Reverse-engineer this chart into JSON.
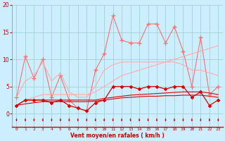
{
  "bg_color": "#cceeff",
  "grid_color": "#99cccc",
  "x_labels": [
    "0",
    "1",
    "2",
    "3",
    "4",
    "5",
    "6",
    "7",
    "8",
    "9",
    "10",
    "11",
    "12",
    "13",
    "14",
    "15",
    "16",
    "17",
    "18",
    "19",
    "20",
    "21",
    "22",
    "23"
  ],
  "xlabel": "Vent moyen/en rafales ( km/h )",
  "ylim": [
    -2.5,
    20
  ],
  "yticks": [
    0,
    5,
    10,
    15,
    20
  ],
  "ytick_labels": [
    "0",
    "5",
    "10",
    "15",
    "20"
  ],
  "series": [
    {
      "name": "gust_peak",
      "color": "#ff7070",
      "lw": 0.8,
      "marker": "+",
      "ms": 4,
      "data": [
        3,
        10.5,
        6.5,
        10,
        3,
        7,
        2.5,
        1,
        0.5,
        8,
        11,
        18,
        13.5,
        13,
        13,
        16.5,
        16.5,
        13,
        16,
        11.5,
        5,
        14,
        3.5,
        5
      ]
    },
    {
      "name": "gust_upper",
      "color": "#ffaaaa",
      "lw": 0.8,
      "marker": null,
      "data": [
        3.0,
        6.0,
        7.0,
        9.5,
        6.0,
        7.5,
        4.0,
        3.0,
        3.0,
        5.0,
        8.0,
        9.0,
        9.5,
        9.5,
        9.5,
        9.5,
        9.5,
        9.5,
        9.5,
        9.0,
        8.0,
        8.0,
        7.5,
        7.0
      ]
    },
    {
      "name": "gust_lower",
      "color": "#ffaaaa",
      "lw": 0.8,
      "marker": null,
      "data": [
        1.5,
        2.5,
        3.0,
        3.5,
        3.5,
        3.5,
        3.5,
        3.5,
        3.5,
        4.0,
        5.0,
        6.0,
        7.0,
        7.5,
        8.0,
        8.5,
        9.0,
        9.5,
        10.0,
        10.5,
        11.0,
        11.5,
        12.0,
        12.5
      ]
    },
    {
      "name": "wind_peak",
      "color": "#dd0000",
      "lw": 0.9,
      "marker": "D",
      "ms": 2,
      "data": [
        1.5,
        2.5,
        2.5,
        2.5,
        2.0,
        2.5,
        1.5,
        1.0,
        0.5,
        2.0,
        2.5,
        5.0,
        5.0,
        5.0,
        4.5,
        5.0,
        5.0,
        4.5,
        5.0,
        5.0,
        3.0,
        4.0,
        1.5,
        2.5
      ]
    },
    {
      "name": "wind_upper",
      "color": "#dd0000",
      "lw": 0.8,
      "marker": null,
      "data": [
        1.5,
        2.5,
        2.5,
        2.5,
        2.5,
        2.5,
        2.5,
        2.5,
        2.5,
        2.5,
        2.8,
        3.0,
        3.2,
        3.4,
        3.5,
        3.6,
        3.7,
        3.8,
        3.9,
        4.0,
        4.0,
        4.0,
        3.8,
        3.5
      ]
    },
    {
      "name": "wind_lower",
      "color": "#dd0000",
      "lw": 0.8,
      "marker": null,
      "data": [
        1.5,
        1.8,
        2.0,
        2.2,
        2.2,
        2.2,
        2.2,
        2.2,
        2.2,
        2.3,
        2.5,
        2.7,
        2.9,
        3.0,
        3.1,
        3.2,
        3.2,
        3.3,
        3.3,
        3.4,
        3.4,
        3.4,
        3.2,
        3.0
      ]
    }
  ],
  "arrow_color": "#cc0000"
}
